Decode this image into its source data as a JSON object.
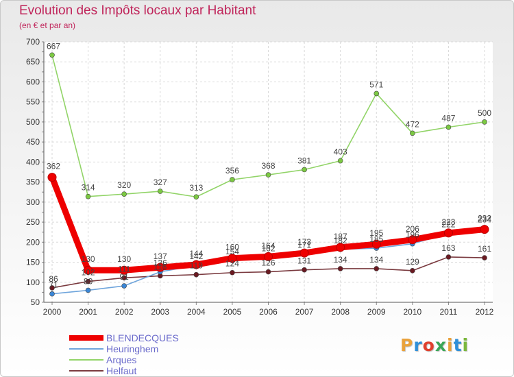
{
  "title": "Evolution des Impôts locaux par Habitant",
  "subtitle": "(en € et par an)",
  "logo": {
    "text": "Proxiti",
    "colors": [
      "#e9a23b",
      "#2f8fd8",
      "#e0402e",
      "#3aa657",
      "#e9a23b",
      "#2f8fd8",
      "#7bb83c"
    ]
  },
  "chart_data": {
    "type": "line",
    "title": "Evolution des Impôts locaux par Habitant",
    "subtitle": "(en € et par an)",
    "x": [
      "2000",
      "2001",
      "2002",
      "2003",
      "2004",
      "2005",
      "2006",
      "2007",
      "2008",
      "2009",
      "2010",
      "2011",
      "2012"
    ],
    "ylim": [
      50,
      700
    ],
    "yticks": [
      "50",
      "100",
      "150",
      "200",
      "250",
      "300",
      "350",
      "400",
      "450",
      "500",
      "550",
      "600",
      "650",
      "700"
    ],
    "grid": true,
    "series": [
      {
        "name": "Helfaut",
        "color": "#6b1a22",
        "line_color": "#7a3a3f",
        "emphasis": false,
        "values": [
          86,
          102,
          111,
          116,
          119,
          124,
          126,
          131,
          134,
          134,
          129,
          163,
          161
        ],
        "labels": [
          "86",
          "102",
          "111",
          "116",
          "119",
          "124",
          "126",
          "131",
          "134",
          "134",
          "129",
          "163",
          "161"
        ]
      },
      {
        "name": "Heuringhem",
        "color": "#3a86d6",
        "line_color": "#6fa5dc",
        "emphasis": false,
        "values": [
          71,
          80,
          91,
          126,
          142,
          154,
          162,
          171,
          182,
          185,
          196,
          222,
          234
        ],
        "labels": [
          "71",
          "80",
          "91",
          "126",
          "142",
          "154",
          "162",
          "171",
          "182",
          "185",
          "196",
          "222",
          "234"
        ]
      },
      {
        "name": "Arques",
        "color": "#7cc943",
        "line_color": "#92d468",
        "emphasis": false,
        "values": [
          667,
          314,
          320,
          327,
          313,
          356,
          368,
          381,
          403,
          571,
          472,
          487,
          500
        ],
        "labels": [
          "667",
          "314",
          "320",
          "327",
          "313",
          "356",
          "368",
          "381",
          "403",
          "571",
          "472",
          "487",
          "500"
        ]
      },
      {
        "name": "BLENDECQUES",
        "color": "#ee0000",
        "line_color": "#ee0000",
        "emphasis": true,
        "values": [
          362,
          130,
          130,
          137,
          144,
          160,
          164,
          173,
          187,
          195,
          206,
          223,
          232
        ],
        "labels": [
          "362",
          "130",
          "130",
          "137",
          "144",
          "160",
          "164",
          "173",
          "187",
          "195",
          "206",
          "223",
          "232"
        ]
      }
    ],
    "legend": {
      "placement": "bottom-left",
      "entries": [
        "BLENDECQUES",
        "Heuringhem",
        "Arques",
        "Helfaut"
      ]
    }
  }
}
